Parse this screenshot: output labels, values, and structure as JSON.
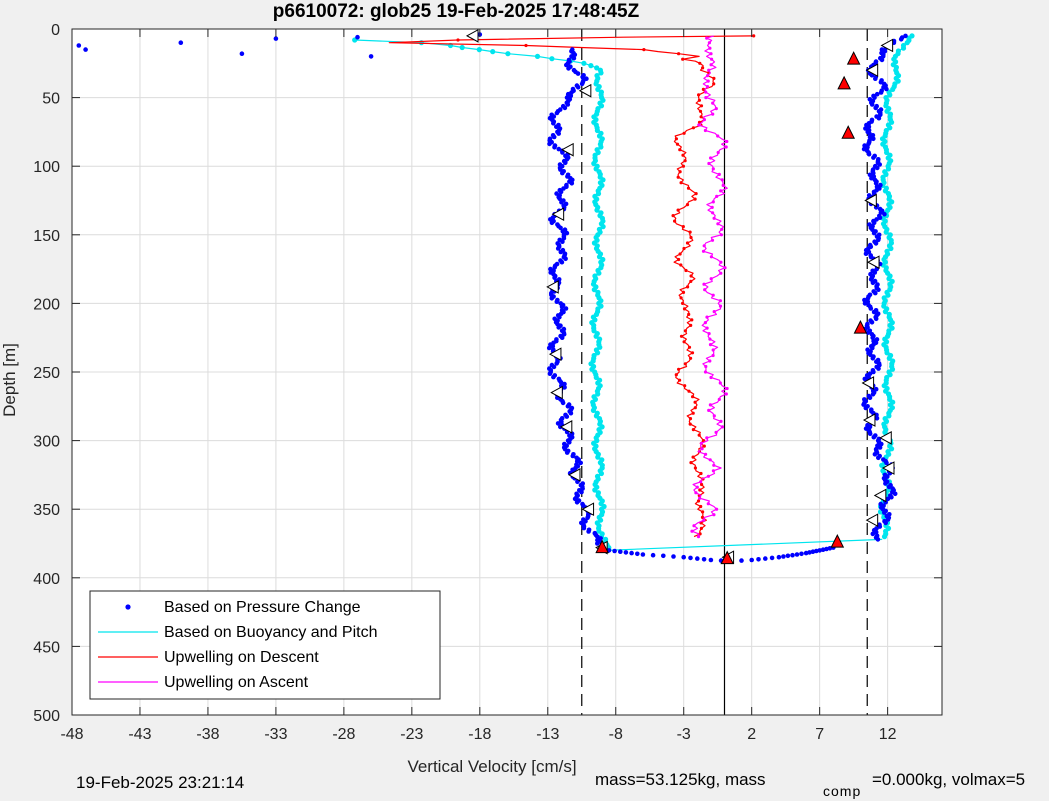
{
  "chart_data": {
    "type": "scatter",
    "title": "p6610072: glob25 19-Feb-2025 17:48:45Z",
    "xlabel": "Vertical Velocity [cm/s]",
    "ylabel": "Depth [m]",
    "xlim": [
      -48,
      16
    ],
    "ylim": [
      0,
      500
    ],
    "y_reversed": true,
    "xticks": [
      -48,
      -43,
      -38,
      -33,
      -28,
      -23,
      -18,
      -13,
      -8,
      -3,
      2,
      7,
      12
    ],
    "yticks": [
      0,
      50,
      100,
      150,
      200,
      250,
      300,
      350,
      400,
      450,
      500
    ],
    "grid": true,
    "legend_position": "bottom-left",
    "reference_lines": {
      "solid_vertical_x": 0,
      "dashed_vertical_x": [
        -10.5,
        10.5
      ]
    },
    "series": [
      {
        "name": "Based on Pressure Change",
        "style": "dots",
        "color": "#0000ff",
        "down": {
          "depth": [
            15,
            25,
            35,
            45,
            55,
            65,
            80,
            95,
            110,
            125,
            140,
            155,
            170,
            185,
            200,
            215,
            230,
            245,
            260,
            275,
            290,
            305,
            320,
            335,
            350,
            365,
            375
          ],
          "velocity": [
            -11.5,
            -11.3,
            -10.6,
            -10.8,
            -12.0,
            -12.4,
            -12.6,
            -11.8,
            -11.6,
            -12.0,
            -12.4,
            -11.8,
            -12.2,
            -12.6,
            -12.2,
            -12.0,
            -12.4,
            -12.6,
            -12.2,
            -11.6,
            -11.8,
            -11.4,
            -10.9,
            -10.8,
            -10.3,
            -10.0,
            -9.3
          ]
        },
        "up": {
          "depth": [
            5,
            15,
            25,
            35,
            45,
            55,
            65,
            75,
            90,
            105,
            120,
            135,
            150,
            165,
            180,
            195,
            210,
            225,
            240,
            255,
            270,
            285,
            300,
            315,
            330,
            345,
            360,
            372
          ],
          "velocity": [
            13.0,
            12.0,
            10.8,
            11.2,
            11.6,
            10.9,
            11.3,
            10.4,
            10.8,
            11.2,
            10.9,
            11.3,
            11.0,
            10.8,
            11.2,
            10.7,
            10.9,
            10.7,
            11.1,
            10.8,
            10.6,
            10.8,
            11.0,
            11.8,
            12.2,
            12.0,
            11.6,
            11.2
          ]
        },
        "turn": {
          "depth": [
            380,
            383,
            385,
            387,
            388,
            387,
            385,
            382,
            378
          ],
          "velocity": [
            -8.5,
            -6,
            -3,
            -1,
            0.5,
            2,
            4,
            6,
            8
          ]
        },
        "outliers": {
          "depth": [
            12,
            15,
            10,
            18,
            7,
            6,
            20,
            4
          ],
          "velocity": [
            -47.5,
            -47,
            -40,
            -35.5,
            -33,
            -27,
            -26,
            -18
          ]
        }
      },
      {
        "name": "Based on Buoyancy and Pitch",
        "style": "line",
        "color": "#00e5ee",
        "down": {
          "depth": [
            8,
            10,
            12,
            15,
            18,
            20,
            25,
            30,
            40,
            60,
            100,
            150,
            200,
            250,
            300,
            350,
            380
          ],
          "velocity": [
            -27,
            -22,
            -20,
            -18,
            -16,
            -14,
            -10.5,
            -9,
            -9.2,
            -9.3,
            -9.3,
            -9.2,
            -9.4,
            -9.5,
            -9.3,
            -9.2,
            -8.8
          ]
        },
        "up": {
          "depth": [
            370,
            340,
            300,
            250,
            200,
            150,
            100,
            60,
            40,
            20,
            10,
            5
          ],
          "velocity": [
            11.7,
            11.8,
            12.0,
            12.1,
            12.0,
            12.0,
            11.9,
            12.0,
            12.4,
            12.8,
            13.2,
            13.5
          ]
        },
        "bottom_link": {
          "depth": [
            380,
            372
          ],
          "velocity": [
            -8.8,
            11.6
          ]
        }
      },
      {
        "name": "Upwelling on Descent",
        "style": "line",
        "color": "#ff0000",
        "depth": [
          5,
          6,
          8,
          10,
          12,
          15,
          18,
          20,
          22,
          25,
          30,
          40,
          50,
          60,
          70,
          80,
          90,
          100,
          110,
          120,
          130,
          140,
          150,
          160,
          170,
          180,
          190,
          200,
          210,
          220,
          230,
          240,
          250,
          260,
          270,
          280,
          290,
          300,
          310,
          320,
          330,
          340,
          350,
          360,
          370
        ],
        "velocity": [
          2,
          -8,
          -20,
          -25,
          -15,
          -6,
          -3,
          -1.5,
          -2.5,
          -1.5,
          -2.0,
          -0.8,
          -1.5,
          -2.2,
          -1.8,
          -3.3,
          -3.4,
          -3.2,
          -2.8,
          -2.6,
          -3.0,
          -3.3,
          -2.9,
          -2.8,
          -3.2,
          -2.7,
          -3.0,
          -2.6,
          -3.1,
          -2.7,
          -2.4,
          -3.0,
          -3.3,
          -2.8,
          -2.5,
          -2.3,
          -2.0,
          -2.1,
          -1.8,
          -1.9,
          -2.2,
          -1.5,
          -1.6,
          -2.0,
          -1.8
        ]
      },
      {
        "name": "Upwelling on Ascent",
        "style": "line",
        "color": "#ff00ff",
        "depth": [
          370,
          360,
          350,
          340,
          330,
          320,
          310,
          300,
          290,
          280,
          270,
          260,
          250,
          240,
          230,
          220,
          210,
          200,
          190,
          180,
          170,
          160,
          150,
          140,
          130,
          120,
          110,
          100,
          90,
          80,
          70,
          60,
          50,
          40,
          30,
          20,
          10,
          5
        ],
        "velocity": [
          -1.5,
          -1.8,
          -1.2,
          -1.5,
          -1.8,
          -1.0,
          -1.2,
          -1.3,
          -0.8,
          -0.5,
          -0.3,
          -0.6,
          -0.8,
          -1.1,
          -1.3,
          -0.9,
          -1.1,
          -0.8,
          -0.9,
          -0.6,
          -0.8,
          -1.0,
          -0.5,
          -0.9,
          -0.6,
          -0.3,
          -0.7,
          -0.4,
          -0.6,
          -0.5,
          -1.2,
          -1.0,
          -1.5,
          -0.8,
          -1.2,
          -1.5,
          -0.5,
          -0.8
        ]
      }
    ],
    "markers": {
      "triangles_left_white": [
        {
          "x": -18.5,
          "y": 5
        },
        {
          "x": -10.2,
          "y": 45
        },
        {
          "x": -11.5,
          "y": 88
        },
        {
          "x": -12.2,
          "y": 135
        },
        {
          "x": -12.6,
          "y": 188
        },
        {
          "x": -12.4,
          "y": 237
        },
        {
          "x": -12.3,
          "y": 265
        },
        {
          "x": -11.6,
          "y": 290
        },
        {
          "x": -11.0,
          "y": 325
        },
        {
          "x": -10.0,
          "y": 350
        },
        {
          "x": -9.0,
          "y": 378
        },
        {
          "x": 0.3,
          "y": 385
        },
        {
          "x": 12.0,
          "y": 12
        },
        {
          "x": 10.9,
          "y": 30
        },
        {
          "x": 10.8,
          "y": 125
        },
        {
          "x": 11.0,
          "y": 170
        },
        {
          "x": 10.6,
          "y": 258
        },
        {
          "x": 10.7,
          "y": 285
        },
        {
          "x": 11.9,
          "y": 298
        },
        {
          "x": 12.1,
          "y": 320
        },
        {
          "x": 11.5,
          "y": 340
        },
        {
          "x": 10.9,
          "y": 358
        }
      ],
      "triangles_up_red": [
        {
          "x": 9.5,
          "y": 22
        },
        {
          "x": 8.8,
          "y": 40
        },
        {
          "x": 9.1,
          "y": 76
        },
        {
          "x": 10.0,
          "y": 218
        },
        {
          "x": 8.3,
          "y": 374
        },
        {
          "x": -9.0,
          "y": 378
        },
        {
          "x": 0.2,
          "y": 386
        }
      ]
    },
    "legend": {
      "location": "bottom-left",
      "entries": [
        "Based on Pressure Change",
        "Based on Buoyancy and Pitch",
        "Upwelling on Descent",
        "Upwelling on Ascent"
      ]
    }
  },
  "footer": {
    "timestamp": "19-Feb-2025 23:21:14",
    "mass_text": "mass=53.125kg, mass",
    "comp_sub": "comp",
    "rest_text": "=0.000kg, volmax=5"
  },
  "colors": {
    "figure_bg": "#f0f0f0",
    "axes_bg": "#ffffff",
    "grid": "#dcdcdc",
    "pressure": "#0000ff",
    "buoyancy": "#00e5ee",
    "descent": "#ff0000",
    "ascent": "#ff00ff"
  }
}
